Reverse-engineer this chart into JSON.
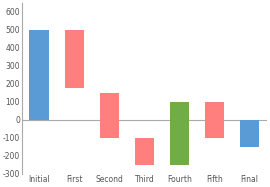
{
  "categories": [
    "Initial",
    "First",
    "Second",
    "Third",
    "Fourth",
    "Fifth",
    "Final"
  ],
  "bar_bottoms": [
    0,
    175,
    -100,
    -250,
    -250,
    -100,
    -150
  ],
  "bar_tops": [
    500,
    500,
    150,
    -100,
    100,
    100,
    0
  ],
  "colors": [
    "#5B9BD5",
    "#FF7F7F",
    "#FF7F7F",
    "#FF7F7F",
    "#70AD47",
    "#FF7F7F",
    "#5B9BD5"
  ],
  "ylim": [
    -300,
    650
  ],
  "yticks": [
    -300,
    -200,
    -100,
    0,
    100,
    200,
    300,
    400,
    500,
    600
  ],
  "background_color": "#FFFFFF",
  "axis_color": "#AAAAAA",
  "tick_fontsize": 5.5,
  "label_fontsize": 5.5,
  "bar_width": 0.55
}
